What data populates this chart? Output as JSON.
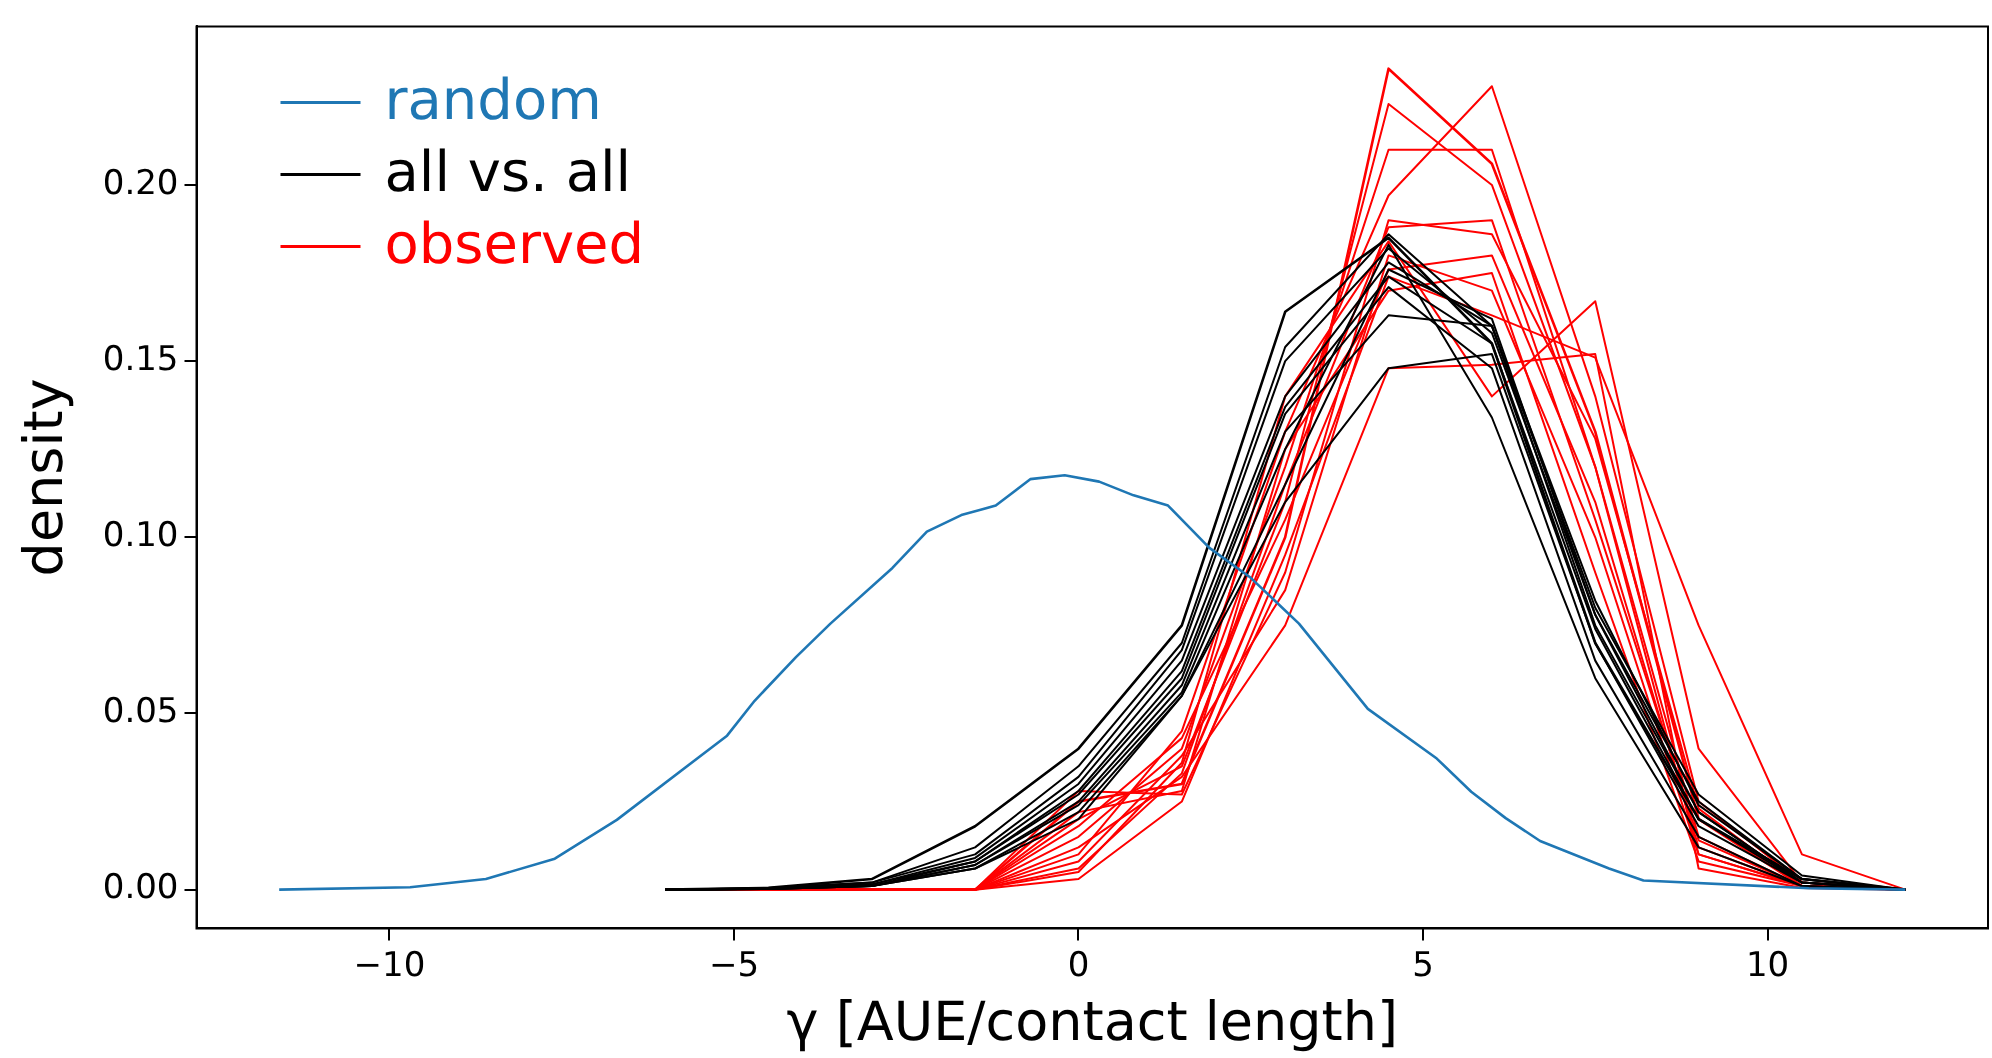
{
  "chart_data": {
    "type": "line",
    "xlabel": "γ [AUE/contact length]",
    "ylabel": "density",
    "xlim": [
      -12.8,
      13.2
    ],
    "ylim": [
      -0.011,
      0.245
    ],
    "xticks": [
      -10,
      -5,
      0,
      5,
      10
    ],
    "yticks": [
      {
        "value": 0,
        "label": "0.00"
      },
      {
        "value": 0.05,
        "label": "0.05"
      },
      {
        "value": 0.1,
        "label": "0.10"
      },
      {
        "value": 0.15,
        "label": "0.15"
      },
      {
        "value": 0.2,
        "label": "0.20"
      }
    ],
    "grid": false,
    "legend": "top left",
    "marker": "none",
    "line_style": "solid",
    "series": [
      {
        "name": "random",
        "color": "#1f77b4",
        "x": [
          -11.6,
          -9.7,
          -8.6,
          -7.6,
          -6.7,
          -5.1,
          -4.7,
          -4.1,
          -3.6,
          -2.7,
          -2.2,
          -1.7,
          -1.2,
          -0.7,
          -0.2,
          0.3,
          0.8,
          1.3,
          1.9,
          2.5,
          3.2,
          4.2,
          5.2,
          5.7,
          6.2,
          6.7,
          7.7,
          8.2,
          10.6,
          12
        ],
        "values": [
          0,
          0.0007,
          0.003,
          0.0088,
          0.0198,
          0.0437,
          0.0536,
          0.066,
          0.0755,
          0.0913,
          0.1016,
          0.1063,
          0.109,
          0.1165,
          0.1176,
          0.1158,
          0.1119,
          0.109,
          0.097,
          0.0885,
          0.0755,
          0.0513,
          0.0372,
          0.0278,
          0.0203,
          0.0138,
          0.006,
          0.0026,
          0.0004,
          0
        ]
      },
      {
        "name": "all vs. all",
        "color": "#000000",
        "x": [
          -6,
          -4.5,
          -3,
          -1.5,
          0,
          1.5,
          3,
          4.5,
          6,
          7.5,
          9,
          10.5,
          12
        ],
        "values": [
          0,
          0.0005,
          0.003,
          0.018,
          0.04,
          0.075,
          0.164,
          0.185,
          0.155,
          0.07,
          0.02,
          0.003,
          0
        ]
      },
      {
        "color": "#000000",
        "x": [
          -6,
          -4.5,
          -3,
          -1.5,
          0,
          1.5,
          3,
          4.5,
          6,
          7.5,
          9,
          10.5,
          12
        ],
        "values": [
          0,
          0.0005,
          0.002,
          0.012,
          0.035,
          0.07,
          0.154,
          0.186,
          0.16,
          0.075,
          0.022,
          0.002,
          0
        ]
      },
      {
        "color": "#000000",
        "x": [
          -6,
          -4.5,
          -3,
          -1.5,
          0,
          1.5,
          3,
          4.5,
          6,
          7.5,
          9,
          10.5,
          12
        ],
        "values": [
          0,
          0.0004,
          0.002,
          0.01,
          0.032,
          0.068,
          0.15,
          0.182,
          0.158,
          0.078,
          0.025,
          0.003,
          0
        ]
      },
      {
        "color": "#000000",
        "x": [
          -6,
          -4.5,
          -3,
          -1.5,
          0,
          1.5,
          3,
          4.5,
          6,
          7.5,
          9,
          10.5,
          12
        ],
        "values": [
          0,
          0.0003,
          0.0015,
          0.009,
          0.03,
          0.065,
          0.14,
          0.178,
          0.16,
          0.08,
          0.027,
          0.004,
          0
        ]
      },
      {
        "color": "#000000",
        "x": [
          -6,
          -4.5,
          -3,
          -1.5,
          0,
          1.5,
          3,
          4.5,
          6,
          7.5,
          9,
          10.5,
          12
        ],
        "values": [
          0,
          0.0003,
          0.0015,
          0.008,
          0.028,
          0.062,
          0.137,
          0.174,
          0.155,
          0.074,
          0.02,
          0.002,
          0
        ]
      },
      {
        "color": "#000000",
        "x": [
          -6,
          -4.5,
          -3,
          -1.5,
          0,
          1.5,
          3,
          4.5,
          6,
          7.5,
          9,
          10.5,
          12
        ],
        "values": [
          0,
          0.0003,
          0.001,
          0.008,
          0.027,
          0.06,
          0.135,
          0.171,
          0.148,
          0.065,
          0.015,
          0.001,
          0
        ]
      },
      {
        "color": "#000000",
        "x": [
          -6,
          -4.5,
          -3,
          -1.5,
          0,
          1.5,
          3,
          4.5,
          6,
          7.5,
          9,
          10.5,
          12
        ],
        "values": [
          0,
          0.0002,
          0.001,
          0.007,
          0.025,
          0.058,
          0.13,
          0.163,
          0.16,
          0.082,
          0.024,
          0.003,
          0
        ]
      },
      {
        "color": "#000000",
        "x": [
          -6,
          -4.5,
          -3,
          -1.5,
          0,
          1.5,
          3,
          4.5,
          6,
          7.5,
          9,
          10.5,
          12
        ],
        "values": [
          0,
          0.0002,
          0.001,
          0.007,
          0.024,
          0.056,
          0.125,
          0.183,
          0.134,
          0.06,
          0.012,
          0.001,
          0
        ]
      },
      {
        "color": "#000000",
        "x": [
          -6,
          -4.5,
          -3,
          -1.5,
          0,
          1.5,
          3,
          4.5,
          6,
          7.5,
          9,
          10.5,
          12
        ],
        "values": [
          0,
          0.0002,
          0.001,
          0.006,
          0.022,
          0.055,
          0.11,
          0.148,
          0.152,
          0.07,
          0.018,
          0.002,
          0
        ]
      },
      {
        "color": "#000000",
        "x": [
          -6,
          -4.5,
          -3,
          -1.5,
          0,
          1.5,
          3,
          4.5,
          6,
          7.5,
          9,
          10.5,
          12
        ],
        "values": [
          0,
          0.0002,
          0.001,
          0.006,
          0.02,
          0.055,
          0.115,
          0.176,
          0.162,
          0.078,
          0.022,
          0.002,
          0
        ]
      },
      {
        "name": "observed",
        "color": "#ff0000",
        "x": [
          -6,
          -4.5,
          -3,
          -1.5,
          0,
          1.5,
          3,
          4.5,
          6,
          7.5,
          9,
          10.5,
          12
        ],
        "values": [
          0,
          0,
          0,
          0,
          0.025,
          0.03,
          0.1,
          0.233,
          0.206,
          0.13,
          0.02,
          0.001,
          0
        ]
      },
      {
        "color": "#ff0000",
        "x": [
          -6,
          -4.5,
          -3,
          -1.5,
          0,
          1.5,
          3,
          4.5,
          6,
          7.5,
          9,
          10.5,
          12
        ],
        "values": [
          0,
          0,
          0,
          0,
          0.02,
          0.035,
          0.11,
          0.223,
          0.2,
          0.12,
          0.015,
          0.001,
          0
        ]
      },
      {
        "color": "#ff0000",
        "x": [
          -6,
          -4.5,
          -3,
          -1.5,
          0,
          1.5,
          3,
          4.5,
          6,
          7.5,
          9,
          10.5,
          12
        ],
        "values": [
          0,
          0,
          0,
          0,
          0.015,
          0.04,
          0.12,
          0.21,
          0.21,
          0.12,
          0.01,
          0.001,
          0
        ]
      },
      {
        "color": "#ff0000",
        "x": [
          -6,
          -4.5,
          -3,
          -1.5,
          0,
          1.5,
          3,
          4.5,
          6,
          7.5,
          9,
          10.5,
          12
        ],
        "values": [
          0,
          0,
          0,
          0,
          0.01,
          0.045,
          0.13,
          0.197,
          0.228,
          0.14,
          0.025,
          0.002,
          0
        ]
      },
      {
        "color": "#ff0000",
        "x": [
          -6,
          -4.5,
          -3,
          -1.5,
          0,
          1.5,
          3,
          4.5,
          6,
          7.5,
          9,
          10.5,
          12
        ],
        "values": [
          0,
          0,
          0,
          0,
          0.028,
          0.027,
          0.09,
          0.19,
          0.186,
          0.128,
          0.023,
          0.001,
          0
        ]
      },
      {
        "color": "#ff0000",
        "x": [
          -6,
          -4.5,
          -3,
          -1.5,
          0,
          1.5,
          3,
          4.5,
          6,
          7.5,
          9,
          10.5,
          12
        ],
        "values": [
          0,
          0,
          0,
          0,
          0.005,
          0.036,
          0.14,
          0.184,
          0.14,
          0.167,
          0.04,
          0.002,
          0
        ]
      },
      {
        "color": "#ff0000",
        "x": [
          -6,
          -4.5,
          -3,
          -1.5,
          0,
          1.5,
          3,
          4.5,
          6,
          7.5,
          9,
          10.5,
          12
        ],
        "values": [
          0,
          0,
          0,
          0,
          0.003,
          0.025,
          0.095,
          0.174,
          0.163,
          0.151,
          0.075,
          0.01,
          0
        ]
      },
      {
        "color": "#ff0000",
        "x": [
          -6,
          -4.5,
          -3,
          -1.5,
          0,
          1.5,
          3,
          4.5,
          6,
          7.5,
          9,
          10.5,
          12
        ],
        "values": [
          0,
          0,
          0,
          0,
          0.012,
          0.032,
          0.075,
          0.148,
          0.149,
          0.152,
          0.006,
          0.0005,
          0
        ]
      },
      {
        "color": "#ff0000",
        "x": [
          -6,
          -4.5,
          -3,
          -1.5,
          0,
          1.5,
          3,
          4.5,
          6,
          7.5,
          9,
          10.5,
          12
        ],
        "values": [
          0,
          0,
          0,
          0,
          0.008,
          0.038,
          0.085,
          0.18,
          0.17,
          0.1,
          0.01,
          0.001,
          0
        ]
      },
      {
        "color": "#ff0000",
        "x": [
          -6,
          -4.5,
          -3,
          -1.5,
          0,
          1.5,
          3,
          4.5,
          6,
          7.5,
          9,
          10.5,
          12
        ],
        "values": [
          0,
          0,
          0,
          0,
          0.018,
          0.043,
          0.105,
          0.176,
          0.18,
          0.11,
          0.012,
          0.001,
          0
        ]
      },
      {
        "color": "#ff0000",
        "x": [
          -6,
          -4.5,
          -3,
          -1.5,
          0,
          1.5,
          3,
          4.5,
          6,
          7.5,
          9,
          10.5,
          12
        ],
        "values": [
          0,
          0,
          0,
          0,
          0.022,
          0.028,
          0.125,
          0.17,
          0.175,
          0.09,
          0.008,
          0.001,
          0
        ]
      },
      {
        "color": "#ff0000",
        "x": [
          -6,
          -4.5,
          -3,
          -1.5,
          0,
          1.5,
          3,
          4.5,
          6,
          7.5,
          9,
          10.5,
          12
        ],
        "values": [
          0,
          0,
          0,
          0,
          0.006,
          0.033,
          0.115,
          0.188,
          0.19,
          0.105,
          0.014,
          0.001,
          0
        ]
      }
    ]
  }
}
